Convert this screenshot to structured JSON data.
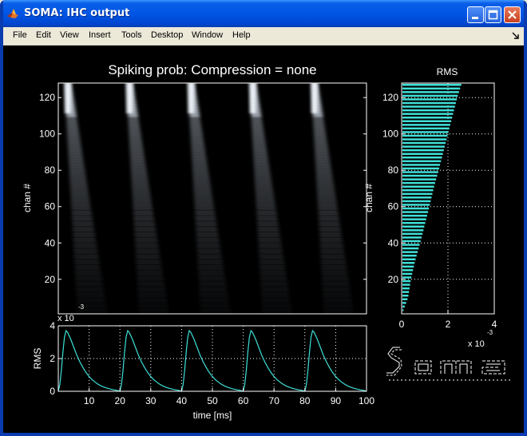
{
  "window": {
    "title": "SOMA: IHC output",
    "icon": "matlab-logo-icon",
    "controls": [
      "minimize-icon",
      "maximize-icon",
      "close-icon"
    ]
  },
  "menu": [
    "File",
    "Edit",
    "View",
    "Insert",
    "Tools",
    "Desktop",
    "Window",
    "Help"
  ],
  "colors": {
    "trace": "#3FE0D8",
    "axes": "#FFFFFF",
    "background": "#000000"
  },
  "chart_data": [
    {
      "type": "heatmap",
      "title": "Spiking prob: Compression = none",
      "ylabel": "chan #",
      "yticks": [
        20,
        40,
        60,
        80,
        100,
        120
      ],
      "ylim": [
        1,
        128
      ],
      "xlim": [
        0,
        100
      ],
      "grid": false,
      "colorscale": "bone",
      "bursts_at_ms": [
        2.5,
        22.5,
        42.5,
        62.5,
        82.5
      ]
    },
    {
      "type": "line",
      "ylabel": "RMS",
      "xlabel": "time [ms]",
      "exponent": "x 10",
      "exponent_power": "-3",
      "xticks": [
        10,
        20,
        30,
        40,
        50,
        60,
        70,
        80,
        90,
        100
      ],
      "yticks": [
        0,
        2,
        4
      ],
      "xlim": [
        0,
        100
      ],
      "ylim": [
        0,
        4
      ],
      "grid": true,
      "series": [
        {
          "period_ms": 20,
          "onset_offsets_ms": [
            0,
            20,
            40,
            60,
            80
          ],
          "shape": [
            [
              0,
              0
            ],
            [
              0.5,
              0.4
            ],
            [
              1,
              1.3
            ],
            [
              1.5,
              2.4
            ],
            [
              2,
              3.3
            ],
            [
              2.5,
              3.7
            ],
            [
              3,
              3.6
            ],
            [
              4,
              3.2
            ],
            [
              5,
              2.7
            ],
            [
              6,
              2.2
            ],
            [
              7,
              1.8
            ],
            [
              8,
              1.45
            ],
            [
              9,
              1.15
            ],
            [
              10,
              0.9
            ],
            [
              11,
              0.7
            ],
            [
              12,
              0.55
            ],
            [
              13,
              0.42
            ],
            [
              14,
              0.32
            ],
            [
              15,
              0.24
            ],
            [
              16,
              0.18
            ],
            [
              17,
              0.13
            ],
            [
              18,
              0.09
            ],
            [
              19,
              0.06
            ],
            [
              20,
              0
            ]
          ]
        }
      ]
    },
    {
      "type": "bar",
      "orientation": "horizontal",
      "title": "RMS",
      "ylabel": "chan #",
      "exponent": "x 10",
      "exponent_power": "-3",
      "xticks": [
        0,
        2,
        4
      ],
      "yticks": [
        20,
        40,
        60,
        80,
        100,
        120
      ],
      "xlim": [
        0,
        4
      ],
      "ylim": [
        1,
        128
      ],
      "grid": true,
      "profile": [
        [
          1,
          0.02
        ],
        [
          10,
          0.28
        ],
        [
          20,
          0.4
        ],
        [
          30,
          0.58
        ],
        [
          40,
          0.8
        ],
        [
          50,
          1.0
        ],
        [
          60,
          1.2
        ],
        [
          70,
          1.38
        ],
        [
          80,
          1.6
        ],
        [
          90,
          1.8
        ],
        [
          100,
          2.0
        ],
        [
          110,
          2.2
        ],
        [
          120,
          2.4
        ],
        [
          128,
          2.6
        ]
      ]
    }
  ],
  "logo": {
    "text": "Soma",
    "icon": "soma-ascii-logo"
  }
}
